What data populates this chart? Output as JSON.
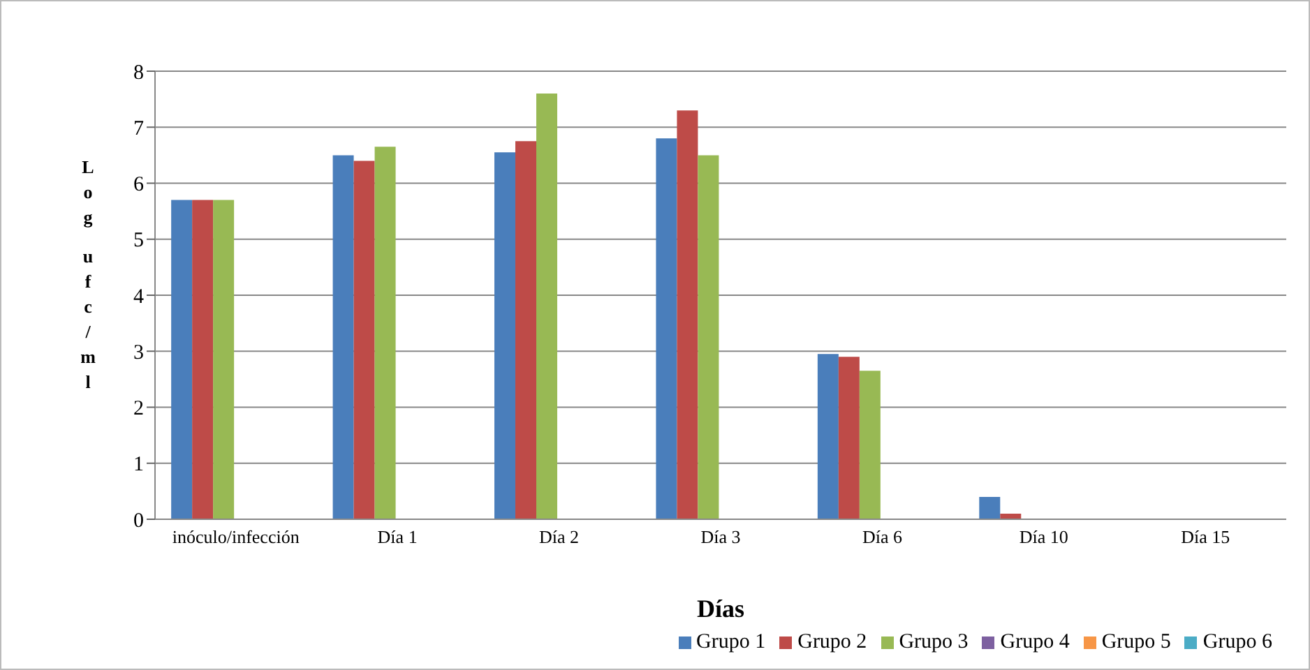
{
  "chart_data": {
    "type": "bar",
    "xlabel": "Días",
    "ylabel": "Log ufc/ml",
    "categories": [
      "inóculo/infección",
      "Día 1",
      "Día 2",
      "Día 3",
      "Día 6",
      "Día 10",
      "Día 15"
    ],
    "series": [
      {
        "name": "Grupo 1",
        "color": "#4a7ebb",
        "values": [
          5.7,
          6.5,
          6.55,
          6.8,
          2.95,
          0.4,
          0
        ]
      },
      {
        "name": "Grupo 2",
        "color": "#be4b48",
        "values": [
          5.7,
          6.4,
          6.75,
          7.3,
          2.9,
          0.1,
          0
        ]
      },
      {
        "name": "Grupo 3",
        "color": "#98b954",
        "values": [
          5.7,
          6.65,
          7.6,
          6.5,
          2.65,
          0,
          0
        ]
      },
      {
        "name": "Grupo 4",
        "color": "#7d60a0",
        "values": [
          null,
          null,
          null,
          null,
          null,
          null,
          null
        ]
      },
      {
        "name": "Grupo 5",
        "color": "#f79646",
        "values": [
          null,
          null,
          null,
          null,
          null,
          null,
          null
        ]
      },
      {
        "name": "Grupo 6",
        "color": "#4bacc6",
        "values": [
          null,
          null,
          null,
          null,
          null,
          null,
          null
        ]
      }
    ],
    "ylim": [
      0,
      8
    ],
    "yticks": [
      0,
      1,
      2,
      3,
      4,
      5,
      6,
      7,
      8
    ],
    "grid": "y",
    "legend": "bottom right"
  }
}
